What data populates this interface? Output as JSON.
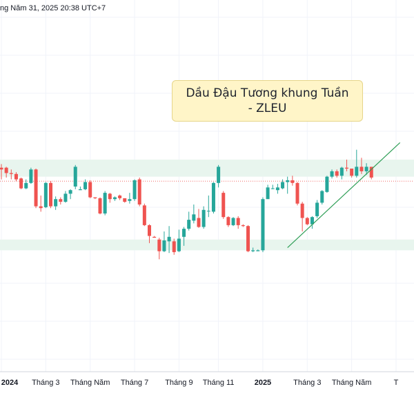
{
  "header": {
    "timestamp": "ng Năm 31, 2025 20:38 UTC+7"
  },
  "annotation": {
    "line1": "Dầu Đậu Tương khung Tuần",
    "line2": "- ZLEU"
  },
  "colors": {
    "up": "#26a69a",
    "down": "#ef5350",
    "zone": "#e8f5ee",
    "trendline": "#2e9e56",
    "grid": "#f0f3fa",
    "axis_text": "#131722",
    "dotted_level": "#ef5350"
  },
  "chart_data": {
    "type": "candlestick",
    "title": "Dầu Đậu Tương khung Tuần - ZLEU",
    "x_ticks": [
      {
        "label": "2024",
        "bold": true,
        "index": 0
      },
      {
        "label": "Tháng 3",
        "bold": false,
        "index": 9
      },
      {
        "label": "Tháng Năm",
        "bold": false,
        "index": 18
      },
      {
        "label": "Tháng 7",
        "bold": false,
        "index": 27
      },
      {
        "label": "Tháng 9",
        "bold": false,
        "index": 36
      },
      {
        "label": "Tháng 11",
        "bold": false,
        "index": 44
      },
      {
        "label": "2025",
        "bold": true,
        "index": 53
      },
      {
        "label": "Tháng 3",
        "bold": false,
        "index": 62
      },
      {
        "label": "Tháng Năm",
        "bold": false,
        "index": 71
      },
      {
        "label": "T",
        "bold": false,
        "index": 80
      }
    ],
    "ylim": [
      -90,
      55
    ],
    "candles": [
      [
        21,
        19,
        25,
        8
      ],
      [
        21,
        15,
        22,
        10
      ],
      [
        15,
        14,
        19,
        8
      ],
      [
        14,
        8,
        16,
        6
      ],
      [
        9,
        -2,
        10,
        -3
      ],
      [
        -2,
        4,
        8,
        -3
      ],
      [
        4,
        19,
        21,
        3
      ],
      [
        19,
        -22,
        20,
        -24
      ],
      [
        -22,
        -24,
        -10,
        -28
      ],
      [
        -23,
        4,
        5,
        -24
      ],
      [
        4,
        -22,
        6,
        -24
      ],
      [
        -22,
        -14,
        -11,
        -26
      ],
      [
        -14,
        -17,
        -12,
        -20
      ],
      [
        -17,
        -8,
        -5,
        -18
      ],
      [
        -8,
        -4,
        -3,
        -14
      ],
      [
        0,
        22,
        24,
        -3
      ],
      [
        -4,
        -3,
        0,
        -4
      ],
      [
        -3,
        5,
        8,
        -4
      ],
      [
        5,
        -12,
        7,
        -13
      ],
      [
        -12,
        -13,
        -12,
        -14
      ],
      [
        -13,
        -30,
        -12,
        -31
      ],
      [
        -30,
        -7,
        -5,
        -32
      ],
      [
        -8,
        -14,
        -7,
        -18
      ],
      [
        -14,
        -12,
        -11,
        -16
      ],
      [
        -10,
        -13,
        -9,
        -15
      ],
      [
        -13,
        -17,
        -14,
        -18
      ],
      [
        -16,
        -14,
        -7,
        -19
      ],
      [
        -14,
        7,
        8,
        -16
      ],
      [
        8,
        -20,
        10,
        -22
      ],
      [
        -21,
        -43,
        -19,
        -44
      ],
      [
        -43,
        -55,
        -42,
        -63
      ],
      [
        -56,
        -57,
        -55,
        -57
      ],
      [
        -59,
        -72,
        -57,
        -81
      ],
      [
        -72,
        -60,
        -50,
        -73
      ],
      [
        -61,
        -56,
        -44,
        -74
      ],
      [
        -61,
        -73,
        -58,
        -76
      ],
      [
        -72,
        -58,
        -48,
        -73
      ],
      [
        -56,
        -47,
        -45,
        -66
      ],
      [
        -47,
        -37,
        -28,
        -49
      ],
      [
        -38,
        -31,
        -20,
        -41
      ],
      [
        -35,
        -45,
        -25,
        -46
      ],
      [
        -45,
        -26,
        -22,
        -47
      ],
      [
        -27,
        -27,
        -10,
        -34
      ],
      [
        -28,
        4,
        5,
        -30
      ],
      [
        4,
        22,
        24,
        -1
      ],
      [
        -7,
        -34,
        -5,
        -36
      ],
      [
        -34,
        -43,
        -33,
        -45
      ],
      [
        -43,
        -35,
        -34,
        -44
      ],
      [
        -35,
        -43,
        -33,
        -47
      ],
      [
        -43,
        -44,
        -42,
        -45
      ],
      [
        -44,
        -72,
        -43,
        -73
      ],
      [
        -72,
        -71,
        -68,
        -73
      ],
      [
        -72,
        -71,
        -70,
        -72
      ],
      [
        -71,
        -14,
        -12,
        -73
      ],
      [
        -14,
        -1,
        2,
        -7
      ],
      [
        -2,
        -2,
        2,
        -3
      ],
      [
        -4,
        -1,
        3,
        -8
      ],
      [
        -2,
        5,
        8,
        -3
      ],
      [
        5,
        7,
        11,
        -8
      ],
      [
        7,
        4,
        12,
        1
      ],
      [
        4,
        -19,
        5,
        -21
      ],
      [
        -19,
        -35,
        -17,
        -50
      ],
      [
        -35,
        -42,
        -34,
        -43
      ],
      [
        -42,
        -34,
        -33,
        -47
      ],
      [
        -33,
        -18,
        -15,
        -35
      ],
      [
        -18,
        -5,
        -4,
        -20
      ],
      [
        -6,
        11,
        12,
        -7
      ],
      [
        11,
        17,
        19,
        9
      ],
      [
        17,
        12,
        19,
        10
      ],
      [
        12,
        21,
        22,
        8
      ],
      [
        21,
        20,
        30,
        17
      ],
      [
        20,
        12,
        18,
        10
      ],
      [
        12,
        22,
        41,
        10
      ],
      [
        22,
        17,
        32,
        14
      ],
      [
        17,
        22,
        26,
        13
      ],
      [
        22,
        10,
        21,
        8
      ]
    ],
    "zones": [
      {
        "top": 30,
        "bottom": 11
      },
      {
        "top": -59,
        "bottom": -71
      }
    ],
    "level_dotted": 6,
    "trendline": {
      "x1_index": 58,
      "y1": -68,
      "x2_index": 78,
      "y2": 32
    }
  }
}
